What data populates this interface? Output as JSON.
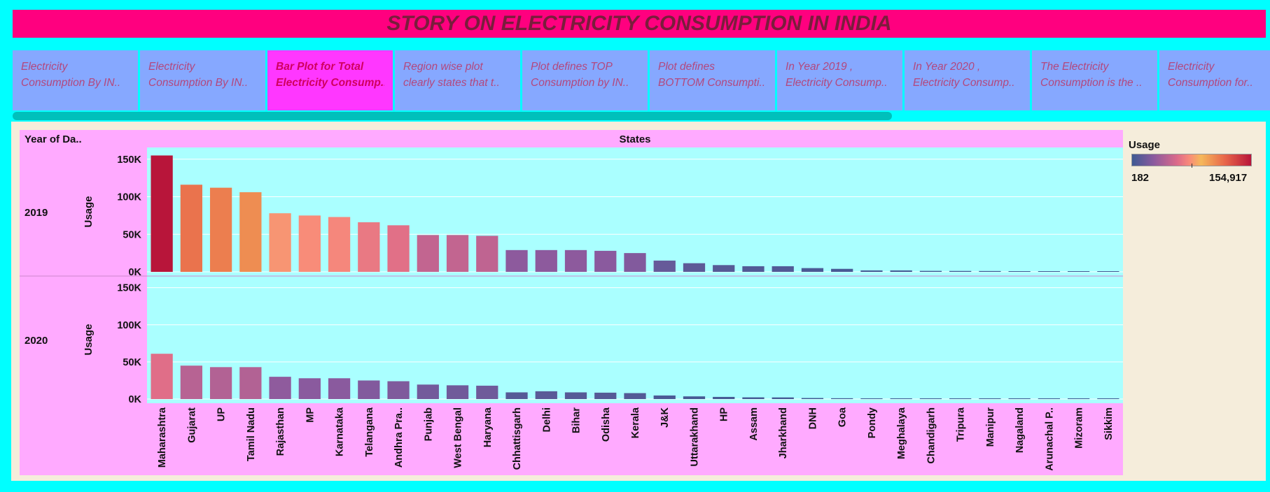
{
  "title": "STORY ON ELECTRICITY CONSUMPTION IN INDIA",
  "tabs": [
    {
      "line1": "Electricity",
      "line2": "Consumption By IN..",
      "active": false
    },
    {
      "line1": "Electricity",
      "line2": "Consumption By IN..",
      "active": false
    },
    {
      "line1": "Bar Plot for Total",
      "line2": "Electricity Consump..",
      "active": true
    },
    {
      "line1": "Region wise plot",
      "line2": "clearly states that t..",
      "active": false
    },
    {
      "line1": "Plot defines TOP",
      "line2": "Consumption by IN..",
      "active": false
    },
    {
      "line1": "Plot defines",
      "line2": "BOTTOM Consumpti..",
      "active": false
    },
    {
      "line1": "In Year 2019 ,",
      "line2": "Electricity Consump..",
      "active": false
    },
    {
      "line1": "In Year 2020 ,",
      "line2": "Electricity Consump..",
      "active": false
    },
    {
      "line1": "The Electricity",
      "line2": "Consumption is the ..",
      "active": false
    },
    {
      "line1": "Electricity",
      "line2": "Consumption for..",
      "active": false
    }
  ],
  "legend": {
    "title": "Usage",
    "min": "182",
    "max": "154,917"
  },
  "chart_data": {
    "type": "bar",
    "column_header": "States",
    "row_header": "Year of Da..",
    "ylabel": "Usage",
    "yticks": [
      "150K",
      "100K",
      "50K",
      "0K"
    ],
    "ylim": [
      0,
      160000
    ],
    "color_range": [
      182,
      154917
    ],
    "categories": [
      "Maharashtra",
      "Gujarat",
      "UP",
      "Tamil Nadu",
      "Rajasthan",
      "MP",
      "Karnataka",
      "Telangana",
      "Andhra Pra..",
      "Punjab",
      "West Bengal",
      "Haryana",
      "Chhattisgarh",
      "Delhi",
      "Bihar",
      "Odisha",
      "Kerala",
      "J&K",
      "Uttarakhand",
      "HP",
      "Assam",
      "Jharkhand",
      "DNH",
      "Goa",
      "Pondy",
      "Meghalaya",
      "Chandigarh",
      "Tripura",
      "Manipur",
      "Nagaland",
      "Arunachal P..",
      "Mizoram",
      "Sikkim"
    ],
    "series": [
      {
        "name": "2019",
        "values": [
          154917,
          116000,
          112000,
          106000,
          78000,
          75000,
          73000,
          66000,
          62000,
          49000,
          49000,
          48000,
          29000,
          29000,
          29000,
          28000,
          25000,
          15000,
          11500,
          9000,
          7500,
          7500,
          5000,
          4000,
          1900,
          1900,
          1300,
          1200,
          1100,
          900,
          800,
          700,
          182
        ]
      },
      {
        "name": "2020",
        "values": [
          61000,
          45000,
          43000,
          43000,
          30000,
          28000,
          28000,
          25000,
          24000,
          19500,
          18500,
          18000,
          9000,
          10500,
          9000,
          8600,
          8000,
          4800,
          3600,
          2900,
          2300,
          2200,
          1400,
          1100,
          800,
          800,
          500,
          400,
          400,
          300,
          300,
          300,
          100
        ]
      }
    ]
  }
}
